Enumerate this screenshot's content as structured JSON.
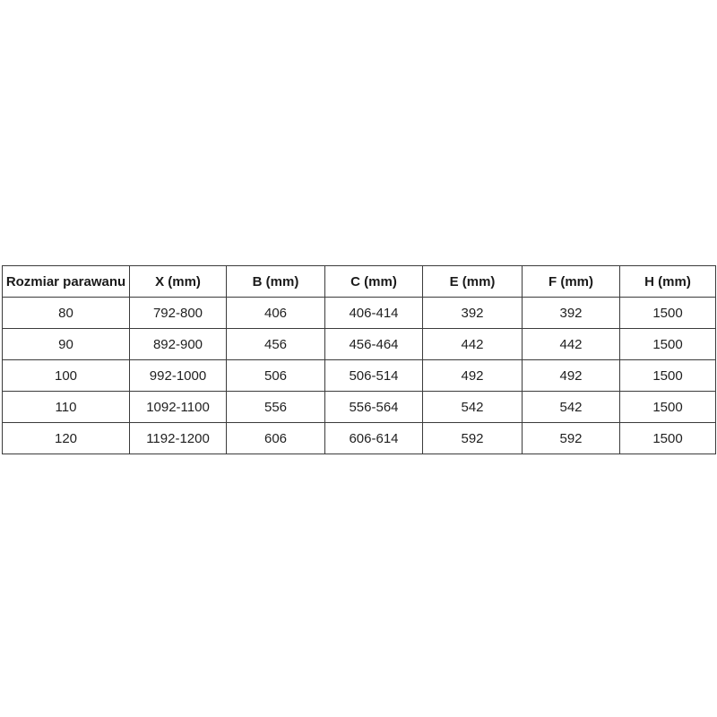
{
  "page": {
    "background_color": "#ffffff",
    "border_color": "#3b3b3b",
    "text_color": "#1f1f1f"
  },
  "chart_data": {
    "type": "table",
    "title": "",
    "columns": [
      "Rozmiar parawanu",
      "X (mm)",
      "B (mm)",
      "C (mm)",
      "E (mm)",
      "F (mm)",
      "H (mm)"
    ],
    "rows": [
      [
        "80",
        "792-800",
        "406",
        "406-414",
        "392",
        "392",
        "1500"
      ],
      [
        "90",
        "892-900",
        "456",
        "456-464",
        "442",
        "442",
        "1500"
      ],
      [
        "100",
        "992-1000",
        "506",
        "506-514",
        "492",
        "492",
        "1500"
      ],
      [
        "110",
        "1092-1100",
        "556",
        "556-564",
        "542",
        "542",
        "1500"
      ],
      [
        "120",
        "1192-1200",
        "606",
        "606-614",
        "592",
        "592",
        "1500"
      ]
    ]
  }
}
